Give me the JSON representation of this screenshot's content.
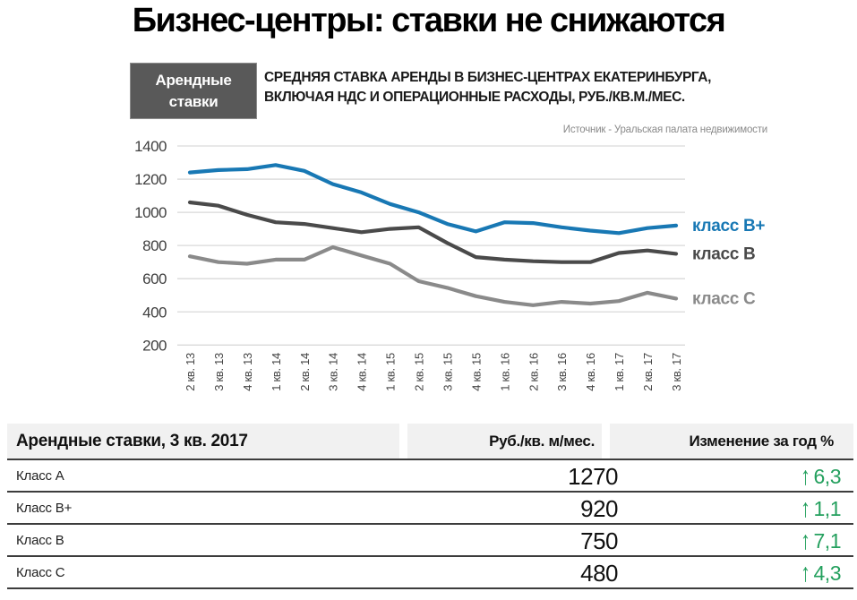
{
  "page": {
    "title": "Бизнес-центры: ставки не снижаются"
  },
  "chart_header": {
    "tag_line1": "Арендные",
    "tag_line2": "ставки",
    "subtitle_line1": "СРЕДНЯЯ СТАВКА АРЕНДЫ В БИЗНЕС-ЦЕНТРАХ ЕКАТЕРИНБУРГА,",
    "subtitle_line2": "ВКЛЮЧАЯ НДС И ОПЕРАЦИОННЫЕ РАСХОДЫ, РУБ./КВ.М./МЕС.",
    "source": "Источник  - Уральская палата недвижимости"
  },
  "chart_data": {
    "type": "line",
    "categories": [
      "2 кв. 13",
      "3 кв. 13",
      "4 кв. 13",
      "1 кв. 14",
      "2 кв. 14",
      "3 кв. 14",
      "4 кв. 14",
      "1 кв. 15",
      "2 кв. 15",
      "3 кв. 15",
      "4 кв. 15",
      "1 кв. 16",
      "2 кв. 16",
      "3 кв. 16",
      "4 кв. 16",
      "1 кв. 17",
      "2 кв. 17",
      "3 кв. 17"
    ],
    "series": [
      {
        "name": "класс B+",
        "color": "#1878b4",
        "values": [
          1240,
          1255,
          1260,
          1285,
          1250,
          1170,
          1120,
          1050,
          1000,
          930,
          885,
          940,
          935,
          910,
          890,
          875,
          905,
          920
        ]
      },
      {
        "name": "класс B",
        "color": "#4a4a4a",
        "values": [
          1060,
          1040,
          985,
          940,
          930,
          905,
          880,
          900,
          910,
          815,
          730,
          715,
          705,
          700,
          700,
          755,
          770,
          750
        ]
      },
      {
        "name": "класс C",
        "color": "#8a8a8a",
        "values": [
          735,
          700,
          690,
          715,
          715,
          790,
          740,
          690,
          585,
          545,
          495,
          460,
          440,
          460,
          450,
          465,
          515,
          480
        ]
      }
    ],
    "ylim": [
      200,
      1400
    ],
    "ytick_step": 200,
    "grid": true,
    "legend_position": "right",
    "gridline_color": "#d9d9d9",
    "tick_label_color": "#3f3f3f"
  },
  "table": {
    "header": [
      "Арендные ставки, 3 кв. 2017",
      "Руб./кв. м/мес.",
      "Изменение за год %"
    ],
    "rows": [
      {
        "label": "Класс A",
        "value": "1270",
        "change": "6,3",
        "direction": "up"
      },
      {
        "label": "Класс B+",
        "value": "920",
        "change": "1,1",
        "direction": "up"
      },
      {
        "label": "Класс B",
        "value": "750",
        "change": "7,1",
        "direction": "up"
      },
      {
        "label": "Класс C",
        "value": "480",
        "change": "4,3",
        "direction": "up"
      }
    ],
    "change_color": "#24a05e"
  },
  "icons": {
    "up_arrow": "↑"
  }
}
